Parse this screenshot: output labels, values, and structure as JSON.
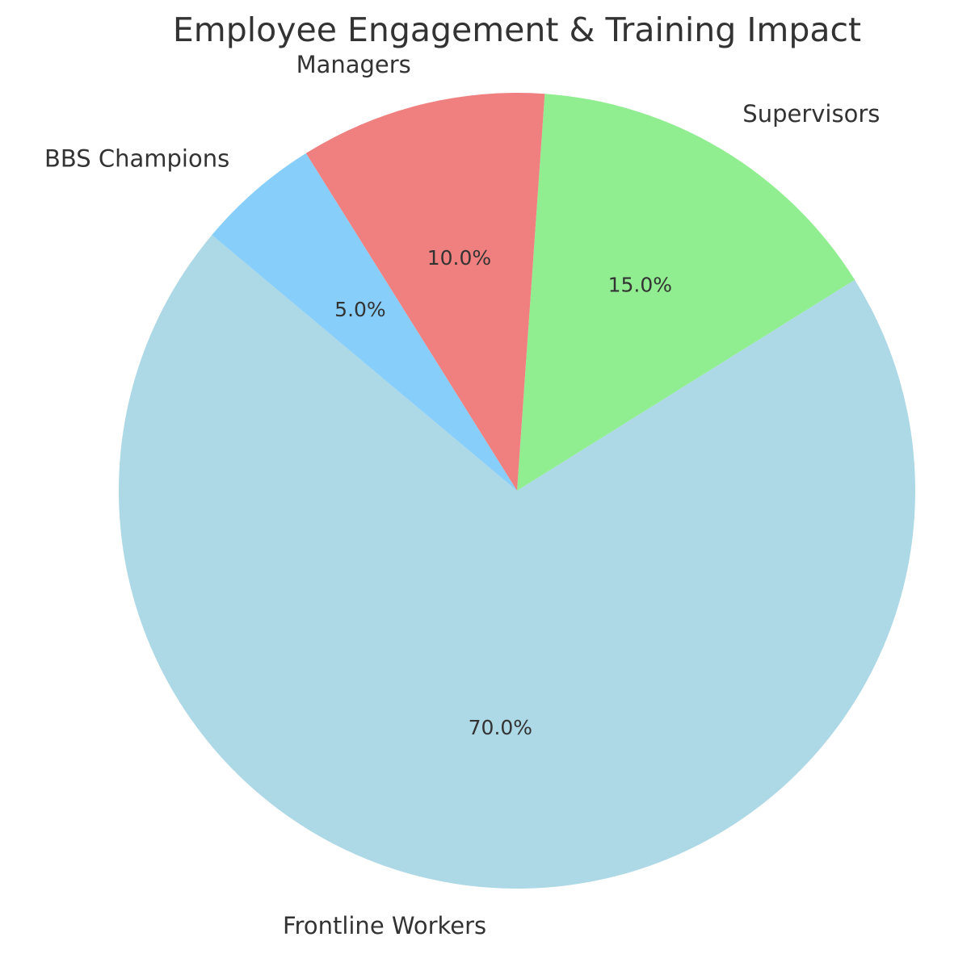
{
  "chart_data": {
    "type": "pie",
    "title": "Employee Engagement & Training Impact",
    "categories": [
      "Frontline Workers",
      "Supervisors",
      "Managers",
      "BBS Champions"
    ],
    "values": [
      70,
      15,
      10,
      5
    ],
    "value_labels": [
      "70.0%",
      "15.0%",
      "10.0%",
      "5.0%"
    ],
    "colors": [
      "#add8e6",
      "#90ee90",
      "#f08080",
      "#87cefa"
    ]
  }
}
